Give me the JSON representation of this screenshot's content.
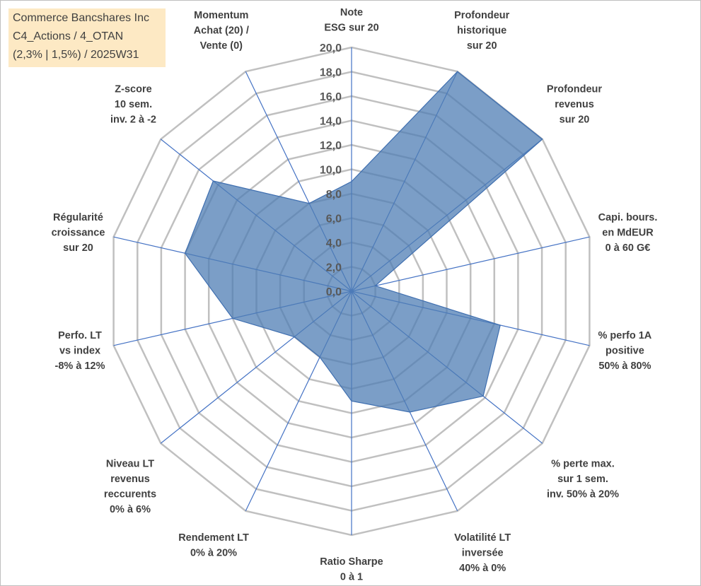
{
  "title_lines": [
    "Commerce Bancshares Inc",
    "C4_Actions / 4_OTAN",
    "(2,3% | 1,5%) / 2025W31"
  ],
  "colors": {
    "series_fill": "#4f7db4",
    "series_fill_opacity": 0.75,
    "series_stroke": "#3f6fb0",
    "grid": "#c0c0c0",
    "spoke": "#4472c4",
    "title_bg": "#fde9c4"
  },
  "chart_data": {
    "type": "radar",
    "rmin": 0,
    "rmax": 20,
    "tick_step": 2,
    "tick_labels": [
      "0,0",
      "2,0",
      "4,0",
      "6,0",
      "8,0",
      "10,0",
      "12,0",
      "14,0",
      "16,0",
      "18,0",
      "20,0"
    ],
    "axes": [
      {
        "label": [
          "Note",
          "ESG sur 20"
        ],
        "value": 9.0
      },
      {
        "label": [
          "Profondeur",
          "historique",
          "sur 20"
        ],
        "value": 20.0
      },
      {
        "label": [
          "Profondeur",
          "revenus",
          "sur 20"
        ],
        "value": 20.0
      },
      {
        "label": [
          "Capi. bours.",
          "en MdEUR",
          "0 à 60 G€"
        ],
        "value": 2.0
      },
      {
        "label": [
          "% perfo 1A",
          "positive",
          "50% à 80%"
        ],
        "value": 12.5
      },
      {
        "label": [
          "% perte max.",
          "sur 1 sem.",
          "inv. 50% à 20%"
        ],
        "value": 13.8
      },
      {
        "label": [
          "Volatilité LT",
          "inversée",
          "40% à 0%"
        ],
        "value": 11.0
      },
      {
        "label": [
          "Ratio Sharpe",
          "0 à 1"
        ],
        "value": 9.0
      },
      {
        "label": [
          "Rendement LT",
          "0% à 20%"
        ],
        "value": 6.0
      },
      {
        "label": [
          "Niveau LT",
          "revenus",
          "reccurents",
          "0% à 6%"
        ],
        "value": 6.0
      },
      {
        "label": [
          "Perfo. LT",
          "vs index",
          "-8% à 12%"
        ],
        "value": 10.0
      },
      {
        "label": [
          "Régularité",
          "croissance",
          "sur 20"
        ],
        "value": 14.0
      },
      {
        "label": [
          "Z-score",
          "10 sem.",
          "inv. 2 à -2"
        ],
        "value": 14.5
      },
      {
        "label": [
          "Momentum",
          "Achat (20) /",
          "Vente (0)"
        ],
        "value": 8.0
      }
    ]
  }
}
